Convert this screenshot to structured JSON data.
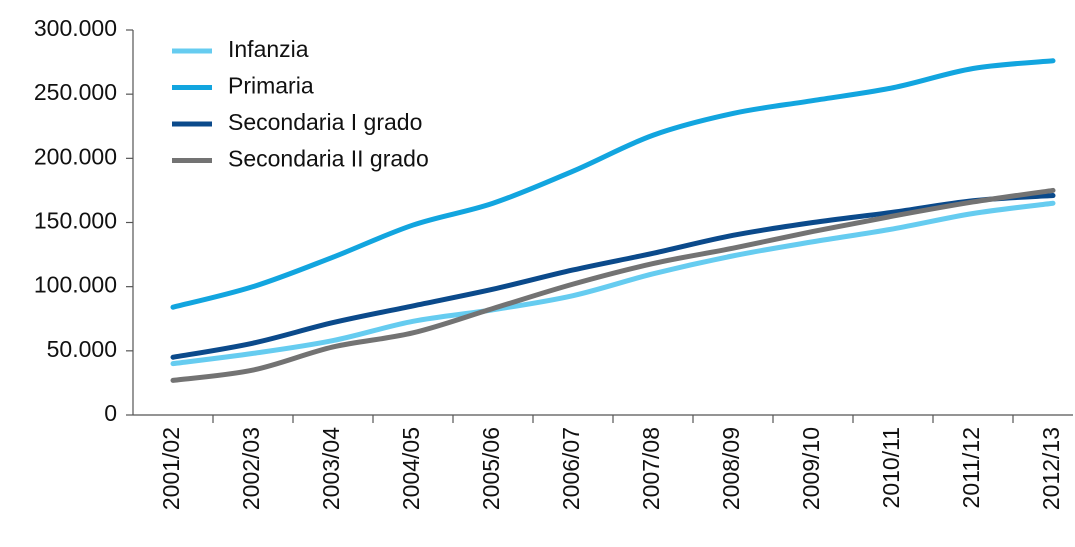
{
  "chart_data": {
    "type": "line",
    "categories": [
      "2001/02",
      "2002/03",
      "2003/04",
      "2004/05",
      "2005/06",
      "2006/07",
      "2007/08",
      "2008/09",
      "2009/10",
      "2010/11",
      "2011/12",
      "2012/13"
    ],
    "series": [
      {
        "name": "Infanzia",
        "color": "#66ccf0",
        "values": [
          40000,
          48000,
          58000,
          73000,
          82000,
          93000,
          110000,
          124000,
          135000,
          145000,
          157000,
          165000
        ]
      },
      {
        "name": "Primaria",
        "color": "#12a5df",
        "values": [
          84000,
          100000,
          123000,
          148000,
          165000,
          190000,
          218000,
          235000,
          245000,
          255000,
          270000,
          276000
        ]
      },
      {
        "name": "Secondaria I grado",
        "color": "#0b4a8b",
        "values": [
          45000,
          56000,
          72000,
          85000,
          98000,
          113000,
          126000,
          140000,
          150000,
          158000,
          167000,
          171000
        ]
      },
      {
        "name": "Secondaria II grado",
        "color": "#737373",
        "values": [
          27000,
          35000,
          53000,
          64000,
          83000,
          102000,
          118000,
          130000,
          143000,
          155000,
          166000,
          175000
        ]
      }
    ],
    "ylim": [
      0,
      300000
    ],
    "yticks": [
      0,
      {
        "value": 50000,
        "label": "50.000"
      },
      {
        "value": 100000,
        "label": "100.000"
      },
      {
        "value": 150000,
        "label": "150.000"
      },
      {
        "value": 200000,
        "label": "200.000"
      },
      {
        "value": 250000,
        "label": "250.000"
      },
      {
        "value": 300000,
        "label": "300.000"
      }
    ],
    "legend": "upper left"
  }
}
